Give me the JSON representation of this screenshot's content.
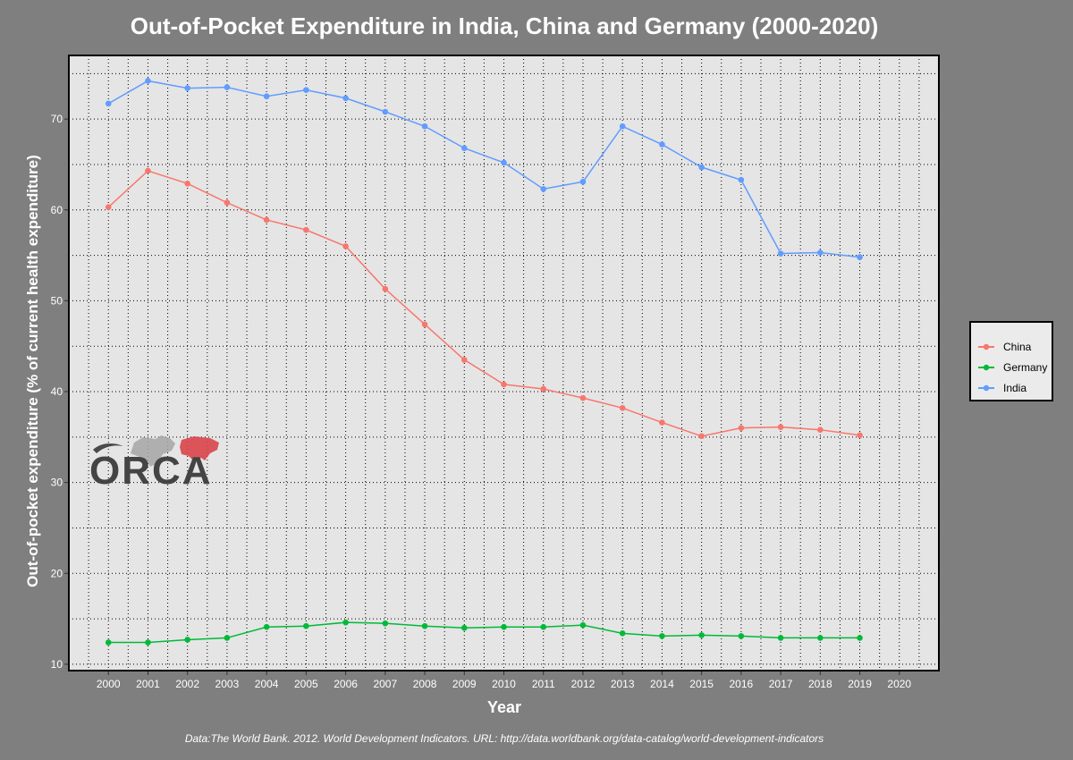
{
  "chart_data": {
    "type": "line",
    "title": "Out-of-Pocket Expenditure in India, China and Germany (2000-2020)",
    "xlabel": "Year",
    "ylabel": "Out-of-pocket expenditure (% of current health expenditure)",
    "caption": "Data:The World Bank. 2012. World Development Indicators. URL: http://data.worldbank.org/data-catalog/world-development-indicators",
    "x_ticks": [
      2000,
      2001,
      2002,
      2003,
      2004,
      2005,
      2006,
      2007,
      2008,
      2009,
      2010,
      2011,
      2012,
      2013,
      2014,
      2015,
      2016,
      2017,
      2018,
      2019,
      2020
    ],
    "y_ticks": [
      10,
      20,
      30,
      40,
      50,
      60,
      70
    ],
    "xlim": [
      1999.0,
      2021.0
    ],
    "ylim": [
      9.3,
      77.0
    ],
    "grid": true,
    "legend_position": "right",
    "x": [
      2000,
      2001,
      2002,
      2003,
      2004,
      2005,
      2006,
      2007,
      2008,
      2009,
      2010,
      2011,
      2012,
      2013,
      2014,
      2015,
      2016,
      2017,
      2018,
      2019
    ],
    "series": [
      {
        "name": "China",
        "color": "#f8766d",
        "values": [
          60.3,
          64.3,
          62.9,
          60.8,
          58.9,
          57.8,
          56.0,
          51.3,
          47.4,
          43.5,
          40.8,
          40.3,
          39.3,
          38.2,
          36.6,
          35.1,
          36.0,
          36.1,
          35.8,
          35.2
        ]
      },
      {
        "name": "Germany",
        "color": "#00ba38",
        "values": [
          12.4,
          12.4,
          12.7,
          12.9,
          14.1,
          14.2,
          14.6,
          14.5,
          14.2,
          14.0,
          14.1,
          14.1,
          14.3,
          13.4,
          13.1,
          13.2,
          13.1,
          12.9,
          12.9,
          12.9
        ]
      },
      {
        "name": "India",
        "color": "#619cff",
        "values": [
          71.7,
          74.2,
          73.4,
          73.5,
          72.5,
          73.2,
          72.3,
          70.8,
          69.2,
          66.8,
          65.2,
          62.3,
          63.1,
          69.2,
          67.2,
          64.7,
          63.3,
          55.2,
          55.3,
          54.8
        ]
      }
    ]
  },
  "logo": {
    "text": "ORCA"
  }
}
